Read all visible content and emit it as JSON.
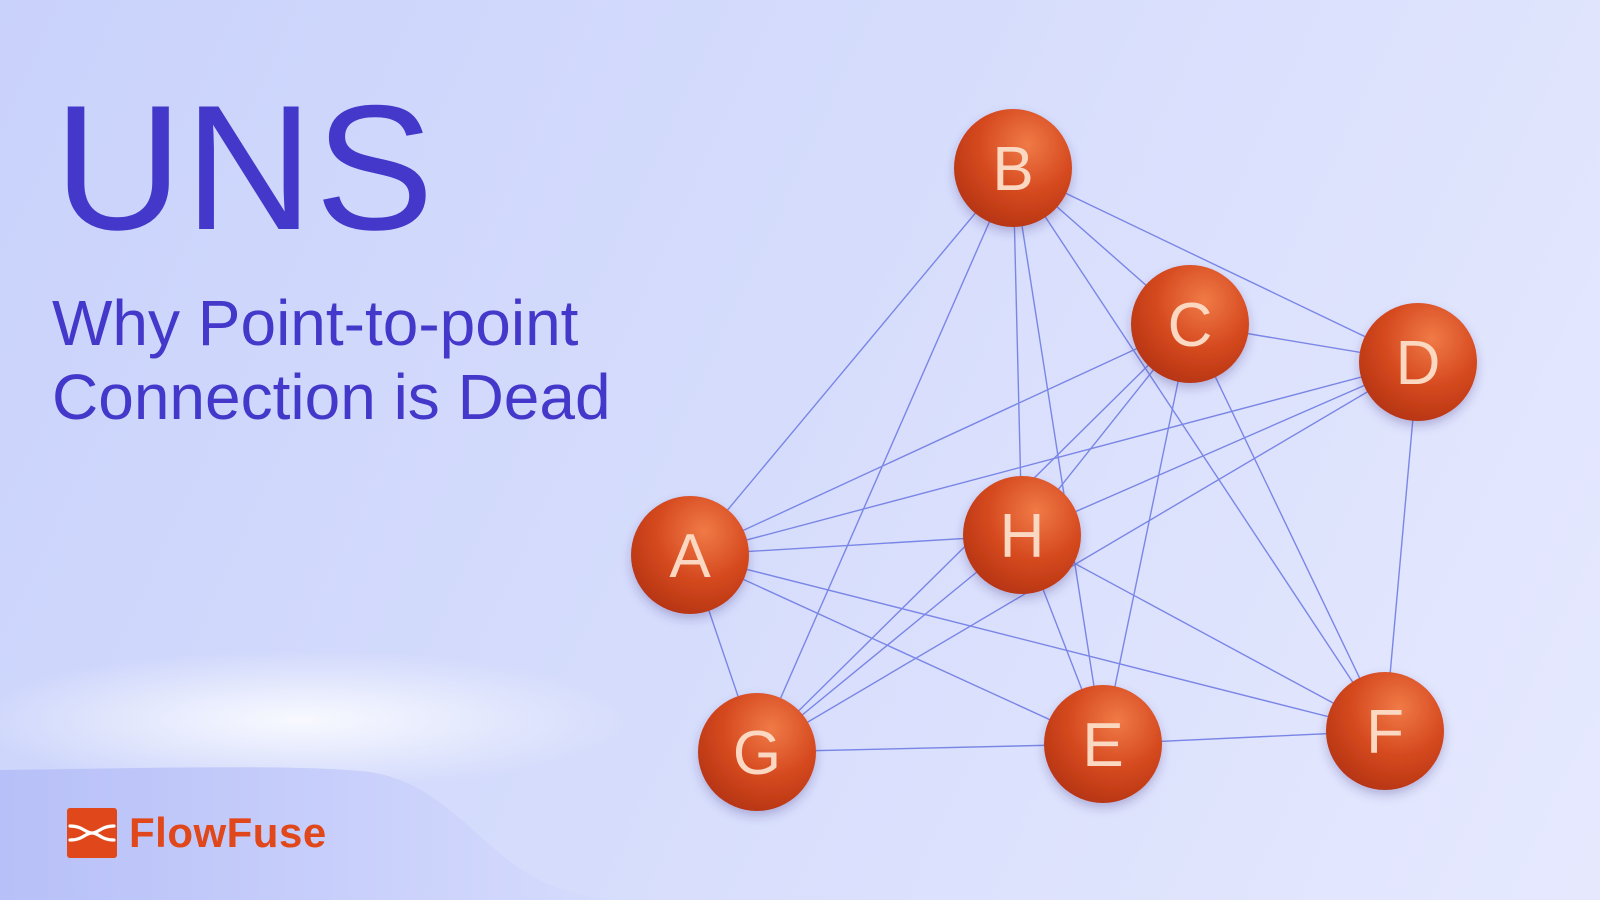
{
  "title": "UNS",
  "subtitle": {
    "line1": "Why Point-to-point",
    "line2": "Connection is Dead"
  },
  "brand": {
    "name": "FlowFuse",
    "icon": "flowfuse-logo-icon",
    "color": "#e0471b"
  },
  "colors": {
    "title": "#4338ca",
    "edge": "#7a86e6",
    "node_light": "#f07a47",
    "node_dark": "#b53412",
    "node_text": "#fbd8c2"
  },
  "diagram": {
    "nodes": [
      "A",
      "B",
      "C",
      "D",
      "E",
      "F",
      "G",
      "H"
    ],
    "edges": [
      [
        "A",
        "B"
      ],
      [
        "A",
        "C"
      ],
      [
        "A",
        "D"
      ],
      [
        "A",
        "H"
      ],
      [
        "A",
        "E"
      ],
      [
        "A",
        "F"
      ],
      [
        "A",
        "G"
      ],
      [
        "B",
        "C"
      ],
      [
        "B",
        "D"
      ],
      [
        "B",
        "H"
      ],
      [
        "B",
        "E"
      ],
      [
        "B",
        "F"
      ],
      [
        "B",
        "G"
      ],
      [
        "C",
        "D"
      ],
      [
        "C",
        "G"
      ],
      [
        "C",
        "E"
      ],
      [
        "C",
        "F"
      ],
      [
        "C",
        "H"
      ],
      [
        "D",
        "H"
      ],
      [
        "D",
        "G"
      ],
      [
        "D",
        "F"
      ],
      [
        "H",
        "G"
      ],
      [
        "H",
        "E"
      ],
      [
        "H",
        "F"
      ],
      [
        "G",
        "E"
      ],
      [
        "E",
        "F"
      ]
    ]
  }
}
